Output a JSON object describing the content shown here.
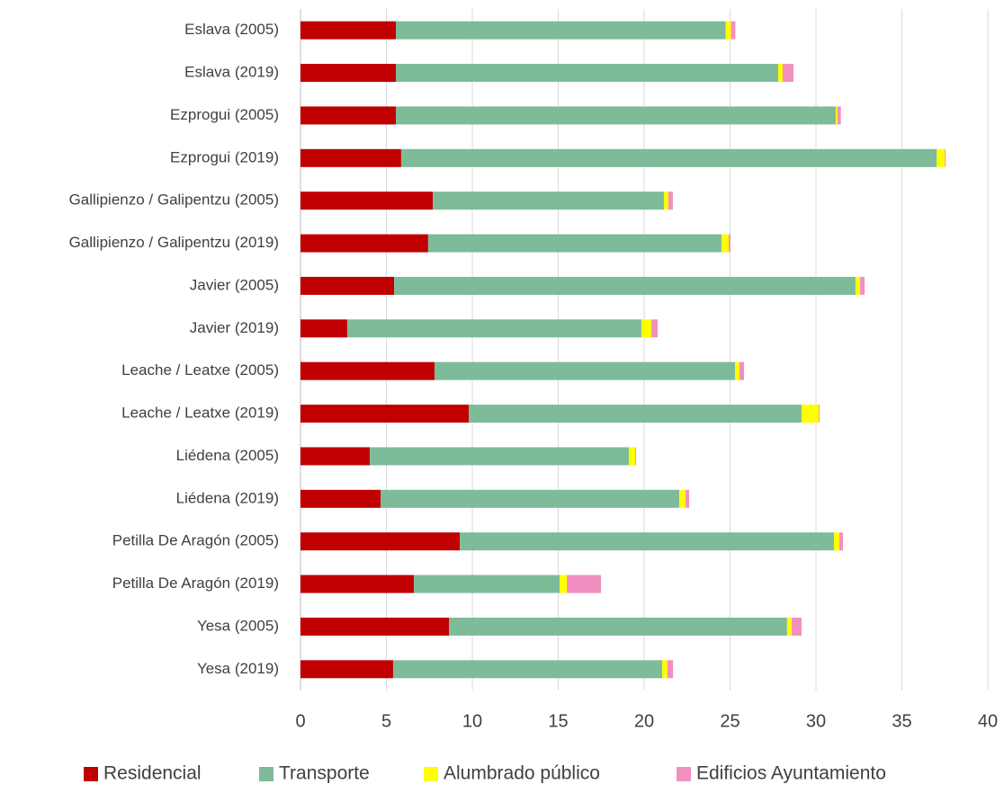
{
  "chart_data": {
    "type": "stacked_barh",
    "categories": [
      "Eslava (2005)",
      "Eslava (2019)",
      "Ezprogui (2005)",
      "Ezprogui (2019)",
      "Gallipienzo / Galipentzu (2005)",
      "Gallipienzo / Galipentzu (2019)",
      "Javier (2005)",
      "Javier (2019)",
      "Leache / Leatxe (2005)",
      "Leache / Leatxe (2019)",
      "Liédena (2005)",
      "Liédena (2019)",
      "Petilla De Aragón (2005)",
      "Petilla De Aragón (2019)",
      "Yesa (2005)",
      "Yesa (2019)"
    ],
    "series": [
      {
        "name": "Residencial",
        "color": "#c00000",
        "values": [
          5.55,
          5.55,
          5.55,
          5.86,
          7.7,
          7.43,
          5.45,
          2.72,
          7.8,
          9.79,
          4.03,
          4.66,
          9.27,
          6.6,
          8.64,
          5.39
        ]
      },
      {
        "name": "Transporte",
        "color": "#7dbb99",
        "values": [
          19.2,
          22.25,
          25.6,
          31.17,
          13.45,
          17.07,
          26.85,
          17.12,
          17.49,
          19.37,
          15.08,
          17.38,
          21.78,
          8.48,
          19.68,
          15.66
        ]
      },
      {
        "name": "Alumbrado público",
        "color": "#ffff00",
        "values": [
          0.3,
          0.26,
          0.1,
          0.47,
          0.26,
          0.42,
          0.27,
          0.58,
          0.26,
          1.0,
          0.37,
          0.37,
          0.31,
          0.42,
          0.27,
          0.31
        ]
      },
      {
        "name": "Edificios Ayuntamiento",
        "color": "#f190c0",
        "values": [
          0.26,
          0.63,
          0.2,
          0.05,
          0.26,
          0.1,
          0.26,
          0.37,
          0.26,
          0.05,
          0.05,
          0.21,
          0.21,
          1.99,
          0.57,
          0.32
        ]
      }
    ],
    "xlim": [
      0,
      40
    ],
    "xticks": [
      0,
      5,
      10,
      15,
      20,
      25,
      30,
      35,
      40
    ],
    "grid": true,
    "legend": "bottom"
  }
}
